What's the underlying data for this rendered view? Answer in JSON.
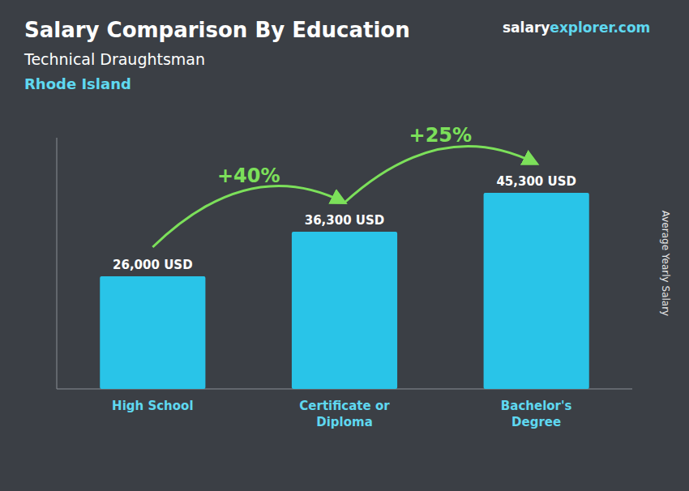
{
  "chart_data": {
    "type": "bar",
    "title": "Salary Comparison By Education",
    "subtitle": "Technical Draughtsman",
    "location": "Rhode Island",
    "source": [
      "salary",
      "explorer.com"
    ],
    "ylabel": "Average Yearly Salary",
    "categories": [
      "High School",
      "Certificate or\nDiploma",
      "Bachelor's\nDegree"
    ],
    "values": [
      26000,
      36300,
      45300
    ],
    "value_labels": [
      "26,000 USD",
      "36,300 USD",
      "45,300 USD"
    ],
    "data_labels": true,
    "annotations": [
      "+40%",
      "+25%"
    ],
    "color": "#29C4E8",
    "ylim": [
      0,
      58000
    ],
    "tick_labels": "x",
    "grid": false
  }
}
